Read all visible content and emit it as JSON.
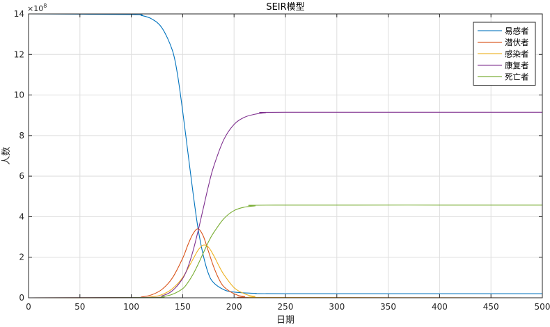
{
  "chart_data": {
    "type": "line",
    "title": "SEIR模型",
    "xlabel": "日期",
    "ylabel": "人数",
    "xlim": [
      0,
      500
    ],
    "ylim": [
      0,
      14
    ],
    "y_multiplier": "×10^8",
    "y_multiplier_base": "×10",
    "y_multiplier_exp": "8",
    "xticks": [
      0,
      50,
      100,
      150,
      200,
      250,
      300,
      350,
      400,
      450,
      500
    ],
    "yticks": [
      0,
      2,
      4,
      6,
      8,
      10,
      12,
      14
    ],
    "grid": true,
    "legend_position": "top-right",
    "series": [
      {
        "name": "易感者",
        "color": "#0072BD",
        "points": [
          [
            0,
            14
          ],
          [
            100,
            13.97
          ],
          [
            110,
            13.92
          ],
          [
            120,
            13.75
          ],
          [
            130,
            13.3
          ],
          [
            140,
            12.2
          ],
          [
            145,
            11.0
          ],
          [
            150,
            9.2
          ],
          [
            155,
            7.2
          ],
          [
            160,
            5.2
          ],
          [
            165,
            3.4
          ],
          [
            170,
            2.1
          ],
          [
            175,
            1.2
          ],
          [
            180,
            0.75
          ],
          [
            190,
            0.4
          ],
          [
            200,
            0.28
          ],
          [
            220,
            0.22
          ],
          [
            250,
            0.2
          ],
          [
            500,
            0.2
          ]
        ]
      },
      {
        "name": "潜伏者",
        "color": "#D95319",
        "points": [
          [
            0,
            0
          ],
          [
            100,
            0.01
          ],
          [
            110,
            0.04
          ],
          [
            120,
            0.15
          ],
          [
            130,
            0.42
          ],
          [
            140,
            0.98
          ],
          [
            150,
            1.95
          ],
          [
            155,
            2.6
          ],
          [
            160,
            3.15
          ],
          [
            165,
            3.4
          ],
          [
            170,
            3.05
          ],
          [
            175,
            2.3
          ],
          [
            180,
            1.55
          ],
          [
            185,
            0.95
          ],
          [
            190,
            0.55
          ],
          [
            200,
            0.2
          ],
          [
            210,
            0.06
          ],
          [
            230,
            0.01
          ],
          [
            500,
            0
          ]
        ]
      },
      {
        "name": "感染者",
        "color": "#EDB120",
        "points": [
          [
            0,
            0
          ],
          [
            100,
            0
          ],
          [
            120,
            0.05
          ],
          [
            130,
            0.16
          ],
          [
            140,
            0.45
          ],
          [
            150,
            1.0
          ],
          [
            160,
            1.9
          ],
          [
            165,
            2.35
          ],
          [
            170,
            2.6
          ],
          [
            175,
            2.5
          ],
          [
            180,
            2.1
          ],
          [
            185,
            1.6
          ],
          [
            190,
            1.15
          ],
          [
            200,
            0.5
          ],
          [
            210,
            0.2
          ],
          [
            220,
            0.07
          ],
          [
            240,
            0.01
          ],
          [
            500,
            0
          ]
        ]
      },
      {
        "name": "康复者",
        "color": "#7E2F8E",
        "points": [
          [
            0,
            0
          ],
          [
            120,
            0.02
          ],
          [
            130,
            0.1
          ],
          [
            140,
            0.35
          ],
          [
            150,
            0.95
          ],
          [
            155,
            1.5
          ],
          [
            160,
            2.3
          ],
          [
            165,
            3.3
          ],
          [
            170,
            4.4
          ],
          [
            175,
            5.5
          ],
          [
            180,
            6.45
          ],
          [
            190,
            7.8
          ],
          [
            200,
            8.55
          ],
          [
            210,
            8.9
          ],
          [
            220,
            9.05
          ],
          [
            230,
            9.12
          ],
          [
            250,
            9.15
          ],
          [
            500,
            9.15
          ]
        ]
      },
      {
        "name": "死亡者",
        "color": "#77AC30",
        "points": [
          [
            0,
            0
          ],
          [
            120,
            0.01
          ],
          [
            130,
            0.05
          ],
          [
            140,
            0.17
          ],
          [
            150,
            0.45
          ],
          [
            155,
            0.75
          ],
          [
            160,
            1.15
          ],
          [
            165,
            1.65
          ],
          [
            170,
            2.2
          ],
          [
            175,
            2.75
          ],
          [
            180,
            3.2
          ],
          [
            190,
            3.9
          ],
          [
            200,
            4.3
          ],
          [
            210,
            4.47
          ],
          [
            220,
            4.53
          ],
          [
            240,
            4.57
          ],
          [
            500,
            4.57
          ]
        ]
      }
    ]
  }
}
